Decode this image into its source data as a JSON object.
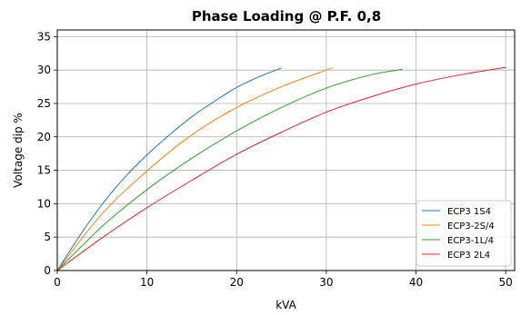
{
  "chart_data": {
    "type": "line",
    "title": "Phase Loading @ P.F. 0,8",
    "xlabel": "kVA",
    "ylabel": "Voltage dip %",
    "xlim": [
      0,
      51
    ],
    "ylim": [
      0,
      36
    ],
    "xticks": [
      0,
      10,
      20,
      30,
      40,
      50
    ],
    "yticks": [
      0,
      5,
      10,
      15,
      20,
      25,
      30,
      35
    ],
    "grid": true,
    "legend_position": "lower-right",
    "series": [
      {
        "name": "ECP3 1S4",
        "color": "#1f77b4",
        "x": [
          0,
          2.5,
          5,
          7.5,
          10,
          12.5,
          15,
          17.5,
          20,
          22.5,
          25
        ],
        "y": [
          0,
          5.2,
          9.9,
          13.9,
          17.3,
          20.3,
          23.0,
          25.3,
          27.4,
          29.0,
          30.3
        ]
      },
      {
        "name": "ECP3-2S/4",
        "color": "#ff7f0e",
        "x": [
          0,
          5,
          10,
          15,
          20,
          25,
          30,
          30.7
        ],
        "y": [
          0,
          8.5,
          14.9,
          20.3,
          24.4,
          27.5,
          30.0,
          30.3
        ]
      },
      {
        "name": "ECP3-1L/4",
        "color": "#2ca02c",
        "x": [
          0,
          5,
          10,
          15,
          20,
          25,
          30,
          35,
          38.5
        ],
        "y": [
          0,
          6.6,
          12.1,
          16.8,
          20.9,
          24.4,
          27.3,
          29.3,
          30.1
        ]
      },
      {
        "name": "ECP3 2L4",
        "color": "#d62728",
        "x": [
          0,
          5,
          10,
          15,
          20,
          25,
          30,
          35,
          40,
          45,
          50
        ],
        "y": [
          0,
          4.9,
          9.4,
          13.5,
          17.4,
          20.7,
          23.7,
          26.0,
          27.9,
          29.3,
          30.4
        ]
      }
    ]
  }
}
